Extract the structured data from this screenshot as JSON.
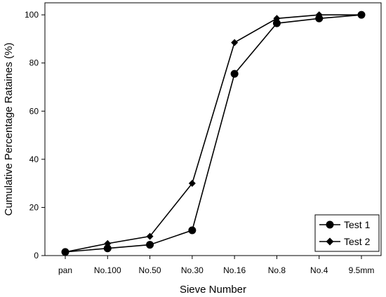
{
  "chart_data": {
    "type": "line",
    "categories": [
      "pan",
      "No.100",
      "No.50",
      "No.30",
      "No.16",
      "No.8",
      "No.4",
      "9.5mm"
    ],
    "series": [
      {
        "name": "Test 1",
        "marker": "circle",
        "values": [
          1.5,
          3,
          4.5,
          10.5,
          75.5,
          96.5,
          98.5,
          100
        ]
      },
      {
        "name": "Test 2",
        "marker": "diamond",
        "values": [
          1.5,
          5,
          8,
          30,
          88.5,
          98.5,
          100,
          100
        ]
      }
    ],
    "title": "",
    "xlabel": "Sieve Number",
    "ylabel": "Cumulative Percentage Rataines (%)",
    "ylim": [
      0,
      105
    ],
    "yticks": [
      0,
      20,
      40,
      60,
      80,
      100
    ],
    "grid": false,
    "legend_position": "bottom-right",
    "colors": {
      "line": "#000000",
      "marker": "#000000",
      "background": "#ffffff"
    }
  }
}
